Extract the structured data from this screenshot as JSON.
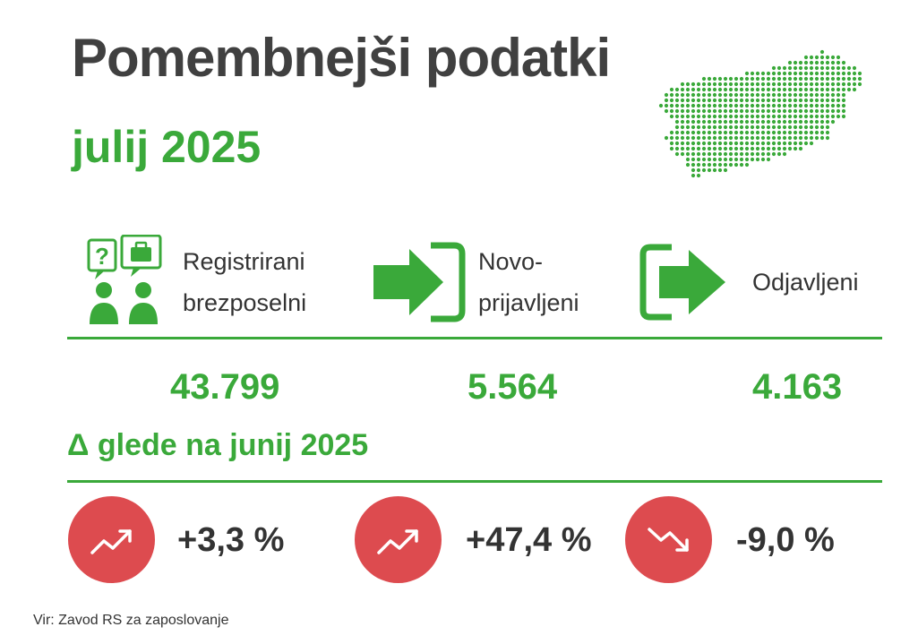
{
  "header": {
    "title": "Pomembnejši podatki",
    "period": "julij 2025"
  },
  "colors": {
    "accent_green": "#3aa93a",
    "indicator_red": "#dd4b4f",
    "text_dark": "#404040"
  },
  "categories": [
    {
      "icon": "unemployed-people-icon",
      "label_line1": "Registrirani",
      "label_line2": "brezposelni",
      "value": "43.799",
      "change": "+3,3 %",
      "trend": "up"
    },
    {
      "icon": "sign-in-arrow-icon",
      "label_line1": "Novo-",
      "label_line2": "prijavljeni",
      "value": "5.564",
      "change": "+47,4 %",
      "trend": "up"
    },
    {
      "icon": "sign-out-arrow-icon",
      "label_line1": "Odjavljeni",
      "label_line2": "",
      "value": "4.163",
      "change": "-9,0 %",
      "trend": "down"
    }
  ],
  "delta_title": "Δ glede na junij 2025",
  "source": "Vir: Zavod RS za zaposlovanje"
}
